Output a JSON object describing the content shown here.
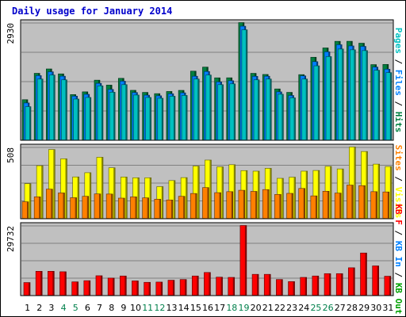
{
  "title": "Daily usage for January 2014",
  "colors": {
    "panel_bg": "#c0c0c0",
    "gridline": "#808080",
    "pages": "#00c0c0",
    "files": "#0080ff",
    "hits": "#008040",
    "sites": "#ff8000",
    "visits": "#ffff00",
    "kbf": "#ff0000",
    "kbin": "#0080ff",
    "kbout": "#00a000",
    "weekend_label": "#00804b",
    "weekday_label": "#000000"
  },
  "chart_data": [
    {
      "type": "bar",
      "panel": "hits",
      "ymax_label": "2930",
      "ylim": [
        0,
        2930
      ],
      "categories": [
        "1",
        "2",
        "3",
        "4",
        "5",
        "6",
        "7",
        "8",
        "9",
        "10",
        "11",
        "12",
        "13",
        "14",
        "15",
        "16",
        "17",
        "18",
        "19",
        "20",
        "21",
        "22",
        "23",
        "24",
        "25",
        "26",
        "27",
        "28",
        "29",
        "30",
        "31"
      ],
      "weekend": [
        4,
        5,
        11,
        12,
        18,
        19,
        25,
        26
      ],
      "series": [
        {
          "name": "Hits",
          "values": [
            1004,
            1663,
            1772,
            1649,
            1131,
            1200,
            1492,
            1368,
            1538,
            1238,
            1186,
            1155,
            1209,
            1237,
            1717,
            1818,
            1550,
            1551,
            2930,
            1662,
            1634,
            1273,
            1187,
            1630,
            2064,
            2297,
            2462,
            2463,
            2415,
            1880,
            1885
          ]
        },
        {
          "name": "Files",
          "values": [
            922,
            1605,
            1701,
            1591,
            1093,
            1138,
            1412,
            1260,
            1466,
            1183,
            1117,
            1101,
            1151,
            1175,
            1590,
            1708,
            1448,
            1477,
            2840,
            1588,
            1590,
            1199,
            1109,
            1599,
            1954,
            2199,
            2377,
            2347,
            2336,
            1819,
            1766
          ]
        },
        {
          "name": "Pages",
          "values": [
            830,
            1520,
            1620,
            1500,
            1020,
            1060,
            1350,
            1190,
            1380,
            1120,
            1060,
            1040,
            1090,
            1110,
            1520,
            1620,
            1380,
            1400,
            2750,
            1500,
            1520,
            1140,
            1050,
            1520,
            1850,
            2080,
            2270,
            2250,
            2230,
            1740,
            1680
          ]
        }
      ]
    },
    {
      "type": "bar",
      "panel": "visits",
      "ymax_label": "508",
      "ylim": [
        0,
        508
      ],
      "categories": [
        "1",
        "2",
        "3",
        "4",
        "5",
        "6",
        "7",
        "8",
        "9",
        "10",
        "11",
        "12",
        "13",
        "14",
        "15",
        "16",
        "17",
        "18",
        "19",
        "20",
        "21",
        "22",
        "23",
        "24",
        "25",
        "26",
        "27",
        "28",
        "29",
        "30",
        "31"
      ],
      "series": [
        {
          "name": "Visits",
          "values": [
            247,
            375,
            490,
            424,
            295,
            325,
            435,
            360,
            294,
            289,
            289,
            226,
            269,
            290,
            372,
            415,
            367,
            382,
            340,
            336,
            356,
            285,
            293,
            336,
            341,
            370,
            352,
            508,
            476,
            386,
            369
          ]
        },
        {
          "name": "Sites",
          "values": [
            118,
            153,
            208,
            181,
            147,
            157,
            174,
            173,
            144,
            153,
            146,
            136,
            131,
            157,
            177,
            219,
            183,
            190,
            200,
            192,
            205,
            170,
            178,
            213,
            160,
            193,
            180,
            237,
            233,
            190,
            188
          ]
        }
      ]
    },
    {
      "type": "bar",
      "panel": "kbytes",
      "ymax_label": "29732",
      "ylim": [
        0,
        29732
      ],
      "categories": [
        "1",
        "2",
        "3",
        "4",
        "5",
        "6",
        "7",
        "8",
        "9",
        "10",
        "11",
        "12",
        "13",
        "14",
        "15",
        "16",
        "17",
        "18",
        "19",
        "20",
        "21",
        "22",
        "23",
        "24",
        "25",
        "26",
        "27",
        "28",
        "29",
        "30",
        "31"
      ],
      "series": [
        {
          "name": "KB F",
          "values": [
            5400,
            10200,
            10200,
            10000,
            5700,
            6200,
            8300,
            7300,
            8200,
            6100,
            5500,
            5600,
            6400,
            6700,
            8200,
            9700,
            7700,
            7600,
            29732,
            8900,
            8900,
            6700,
            5800,
            7600,
            8200,
            9200,
            9200,
            11700,
            18000,
            12500,
            8100
          ]
        }
      ]
    }
  ],
  "right_labels": {
    "top": [
      {
        "text": "Pages",
        "color": "#00c0c0"
      },
      {
        "text": " / ",
        "color": "#000000"
      },
      {
        "text": "Files",
        "color": "#0080ff"
      },
      {
        "text": " / ",
        "color": "#000000"
      },
      {
        "text": "Hits",
        "color": "#008040"
      }
    ],
    "middle": [
      {
        "text": "Sites",
        "color": "#ff8000"
      },
      {
        "text": " / ",
        "color": "#000000"
      },
      {
        "text": "Visits",
        "color": "#ffff00"
      }
    ],
    "bottom": [
      {
        "text": "KB F",
        "color": "#ff0000"
      },
      {
        "text": " / ",
        "color": "#000000"
      },
      {
        "text": "KB In",
        "color": "#0080ff"
      },
      {
        "text": " / ",
        "color": "#000000"
      },
      {
        "text": "KB Out",
        "color": "#00a000"
      }
    ]
  }
}
